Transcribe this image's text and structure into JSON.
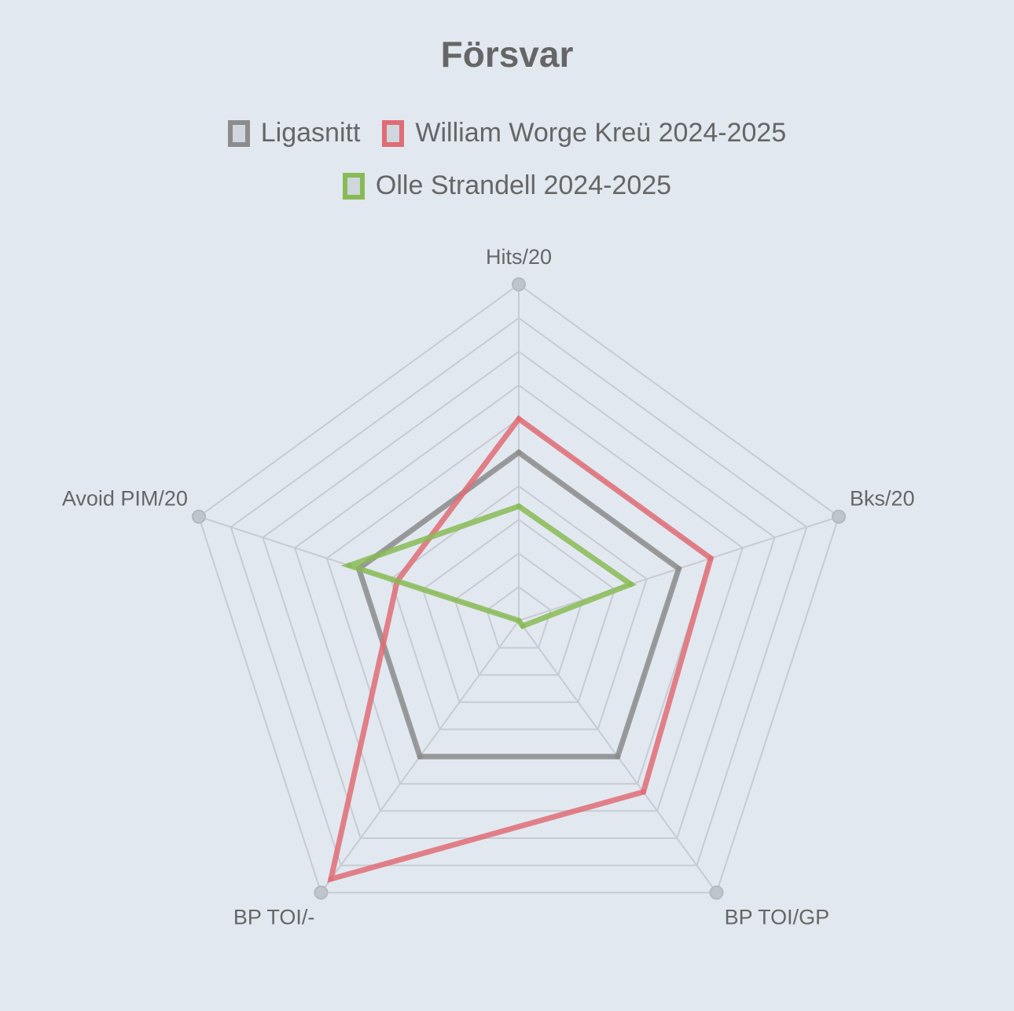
{
  "chart_data": {
    "type": "radar",
    "title": "Försvar",
    "axes": [
      "Hits/20",
      "Bks/20",
      "BP TOI/GP",
      "BP TOI/-",
      "Avoid PIM/20"
    ],
    "scale": {
      "min": 0,
      "max": 100,
      "steps": 10
    },
    "grid": true,
    "legend_position": "top",
    "series": [
      {
        "name": "Ligasnitt",
        "color": "#8c8c8c",
        "values": [
          50,
          50,
          50,
          50,
          50
        ]
      },
      {
        "name": "William Worge Kreü 2024-2025",
        "color": "#e06c75",
        "values": [
          60,
          60,
          63,
          95,
          38
        ]
      },
      {
        "name": "Olle Strandell 2024-2025",
        "color": "#88bb55",
        "values": [
          34,
          35,
          2,
          0,
          53
        ]
      }
    ]
  }
}
